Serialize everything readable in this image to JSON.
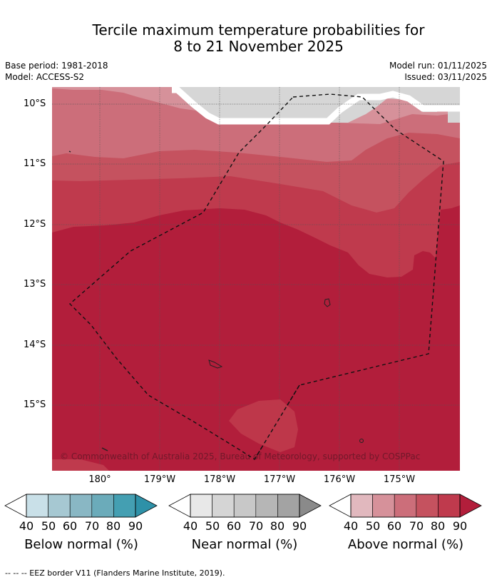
{
  "title": "Tercile maximum temperature probabilities for\n8 to 21 November 2025",
  "meta": {
    "base_period": "Base period: 1981-2018",
    "model": "Model: ACCESS-S2",
    "model_run": "Model run: 01/11/2025",
    "issued": "Issued: 03/11/2025"
  },
  "map": {
    "lat_labels": [
      "10°S",
      "11°S",
      "12°S",
      "13°S",
      "14°S",
      "15°S"
    ],
    "lon_labels": [
      "180°",
      "179°W",
      "178°W",
      "177°W",
      "176°W",
      "175°W"
    ],
    "credit": "© Commonwealth of Australia 2025, Bureau of Meteorology, supported by COSPPac",
    "colors": {
      "no_data": "#d6d6d6",
      "above_40": "#e1b8be",
      "above_50": "#d6919a",
      "above_60": "#cc6e7a",
      "above_70": "#c5525f",
      "above_80": "#bf3a4d",
      "above_90": "#b21e3b"
    }
  },
  "legend": {
    "ticks": [
      "40",
      "50",
      "60",
      "70",
      "80",
      "90"
    ],
    "below": {
      "title": "Below normal (%)",
      "colors": [
        "#c9e0e8",
        "#a6c8d2",
        "#89b7c4",
        "#6babba",
        "#449fb2",
        "#2e91a8"
      ]
    },
    "near": {
      "title": "Near normal (%)",
      "colors": [
        "#e8e8e8",
        "#d5d5d5",
        "#c8c8c8",
        "#b6b6b6",
        "#a3a3a3",
        "#8a8a8a"
      ]
    },
    "above": {
      "title": "Above normal (%)",
      "colors": [
        "#e1b8be",
        "#d6919a",
        "#cc6e7a",
        "#c5525f",
        "#bf3a4d",
        "#b21e3b"
      ]
    }
  },
  "footnote": "--  --  -- EEZ border V11 (Flanders Marine Institute, 2019)."
}
